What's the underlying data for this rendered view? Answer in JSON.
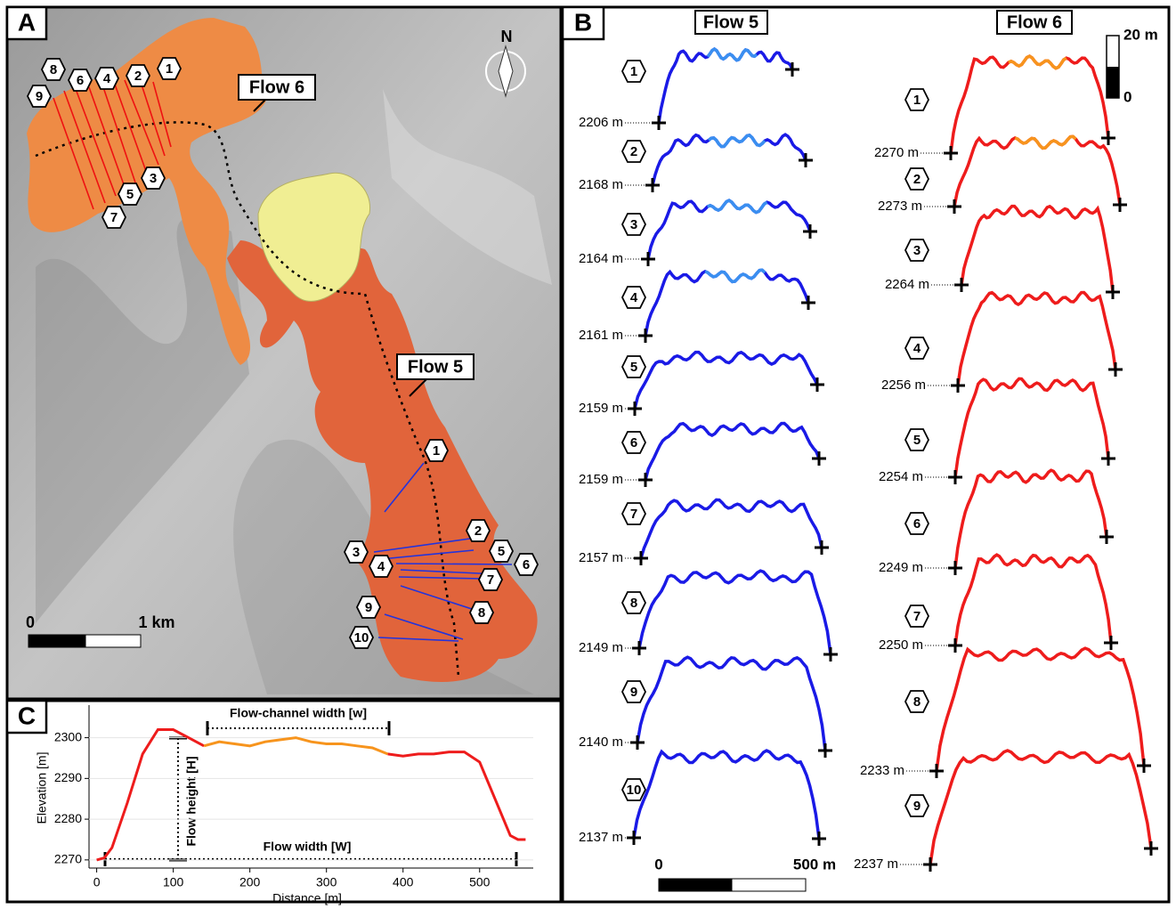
{
  "panel_a": {
    "label": "A",
    "flow6_label": "Flow 6",
    "flow5_label": "Flow 5",
    "north": "N",
    "flow6_sections": [
      "1",
      "2",
      "3",
      "4",
      "5",
      "6",
      "7",
      "8",
      "9"
    ],
    "flow5_sections": [
      "1",
      "2",
      "3",
      "4",
      "5",
      "6",
      "7",
      "8",
      "9",
      "10"
    ],
    "scale_start": "0",
    "scale_end": "1 km"
  },
  "panel_b": {
    "label": "B",
    "flow5_title": "Flow 5",
    "flow6_title": "Flow 6",
    "vscale_top": "20 m",
    "vscale_bottom": "0",
    "hscale_start": "0",
    "hscale_end": "500 m",
    "flow5_profiles": [
      {
        "number": "1",
        "base": "2206 m"
      },
      {
        "number": "2",
        "base": "2168 m"
      },
      {
        "number": "3",
        "base": "2164 m"
      },
      {
        "number": "4",
        "base": "2161 m"
      },
      {
        "number": "5",
        "base": "2159 m"
      },
      {
        "number": "6",
        "base": "2159 m"
      },
      {
        "number": "7",
        "base": "2157 m"
      },
      {
        "number": "8",
        "base": "2149 m"
      },
      {
        "number": "9",
        "base": "2140 m"
      },
      {
        "number": "10",
        "base": "2137 m"
      }
    ],
    "flow6_profiles": [
      {
        "number": "1",
        "base": "2270 m"
      },
      {
        "number": "2",
        "base": "2273 m"
      },
      {
        "number": "3",
        "base": "2264 m"
      },
      {
        "number": "4",
        "base": "2256 m"
      },
      {
        "number": "5",
        "base": "2254 m"
      },
      {
        "number": "6",
        "base": "2249 m"
      },
      {
        "number": "7",
        "base": "2250 m"
      },
      {
        "number": "8",
        "base": "2233 m"
      },
      {
        "number": "9",
        "base": "2237 m"
      }
    ]
  },
  "chart_data": {
    "type": "line",
    "panel_label": "C",
    "x_label": "Distance [m]",
    "y_label": "Elevation  [m]",
    "annotations": [
      "Flow-channel width [w]",
      "Flow height [H]",
      "Flow width [W]"
    ],
    "x": [
      0,
      10,
      20,
      40,
      60,
      80,
      100,
      120,
      140,
      160,
      180,
      200,
      220,
      240,
      260,
      280,
      300,
      320,
      340,
      360,
      380,
      400,
      420,
      440,
      460,
      480,
      500,
      520,
      540,
      550,
      560
    ],
    "series": [
      {
        "color": "#ee1c1c",
        "values": [
          2270,
          2270.5,
          2273,
          2284,
          2296,
          2302,
          2302,
          2300,
          2298,
          null,
          null,
          null,
          null,
          null,
          null,
          null,
          null,
          null,
          null,
          null,
          2296,
          2295.5,
          2296,
          2296,
          2296.5,
          2296.5,
          2294,
          2285,
          2276,
          2275,
          2275
        ]
      },
      {
        "color": "#f7941d",
        "values": [
          null,
          null,
          null,
          null,
          null,
          null,
          null,
          null,
          2298,
          2299,
          2298.5,
          2298,
          2299,
          2299.5,
          2300,
          2299,
          2298.5,
          2298.5,
          2298,
          2297.5,
          2296,
          null,
          null,
          null,
          null,
          null,
          null,
          null,
          null,
          null,
          null
        ]
      }
    ],
    "xlim": [
      -10,
      570
    ],
    "ylim": [
      2268,
      2308
    ],
    "xticks": [
      0,
      100,
      200,
      300,
      400,
      500
    ],
    "yticks": [
      2270,
      2280,
      2290,
      2300
    ]
  }
}
